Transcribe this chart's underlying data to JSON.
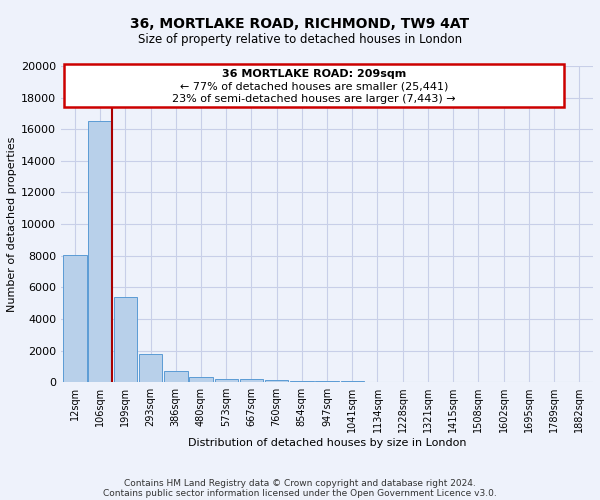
{
  "title": "36, MORTLAKE ROAD, RICHMOND, TW9 4AT",
  "subtitle": "Size of property relative to detached houses in London",
  "xlabel": "Distribution of detached houses by size in London",
  "ylabel": "Number of detached properties",
  "annotation_line1": "36 MORTLAKE ROAD: 209sqm",
  "annotation_line2": "← 77% of detached houses are smaller (25,441)",
  "annotation_line3": "23% of semi-detached houses are larger (7,443) →",
  "footer1": "Contains HM Land Registry data © Crown copyright and database right 2024.",
  "footer2": "Contains public sector information licensed under the Open Government Licence v3.0.",
  "bar_color": "#b8d0ea",
  "bar_edge_color": "#5b9bd5",
  "redline_color": "#aa0000",
  "annotation_box_edgecolor": "#cc0000",
  "annotation_box_facecolor": "#ffffff",
  "background_color": "#eef2fb",
  "grid_color": "#c8cfe8",
  "categories": [
    "12sqm",
    "106sqm",
    "199sqm",
    "293sqm",
    "386sqm",
    "480sqm",
    "573sqm",
    "667sqm",
    "760sqm",
    "854sqm",
    "947sqm",
    "1041sqm",
    "1134sqm",
    "1228sqm",
    "1321sqm",
    "1415sqm",
    "1508sqm",
    "1602sqm",
    "1695sqm",
    "1789sqm",
    "1882sqm"
  ],
  "values": [
    8050,
    16500,
    5400,
    1800,
    700,
    350,
    230,
    170,
    130,
    100,
    60,
    50,
    0,
    0,
    0,
    0,
    0,
    0,
    0,
    0,
    0
  ],
  "ylim": [
    0,
    20000
  ],
  "yticks": [
    0,
    2000,
    4000,
    6000,
    8000,
    10000,
    12000,
    14000,
    16000,
    18000,
    20000
  ],
  "redline_after_index": 1,
  "figsize": [
    6.0,
    5.0
  ],
  "dpi": 100
}
